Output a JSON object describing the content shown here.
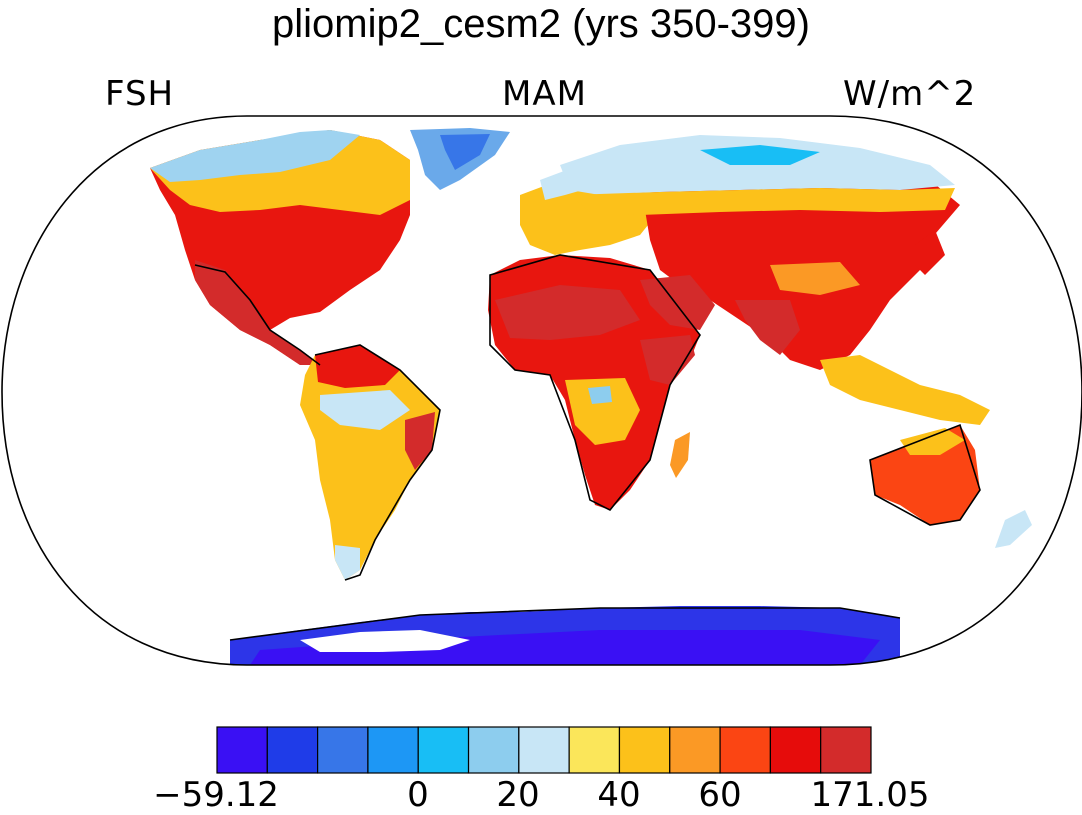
{
  "title": "pliomip2_cesm2 (yrs 350-399)",
  "left_label": "FSH",
  "center_label": "MAM",
  "right_label": "W/m^2",
  "colorbar": {
    "colors": [
      "#3a10f4",
      "#1f3ce8",
      "#3776e8",
      "#1d97f5",
      "#18bef5",
      "#8dcdee",
      "#c8e6f6",
      "#fbe65a",
      "#fcc11a",
      "#fb9925",
      "#fb4513",
      "#e60c0b",
      "#d32b2b"
    ],
    "tick_labels": [
      "−59.12",
      "0",
      "20",
      "40",
      "60",
      "171.05"
    ]
  },
  "chart_data": {
    "type": "heatmap",
    "title": "pliomip2_cesm2 (yrs 350-399)",
    "variable": "FSH",
    "season": "MAM",
    "units": "W/m^2",
    "projection": "Robinson",
    "range": [
      -59.12,
      171.05
    ],
    "colorbar_ticks": [
      "-59.12",
      "0",
      "20",
      "40",
      "60",
      "171.05"
    ]
  }
}
